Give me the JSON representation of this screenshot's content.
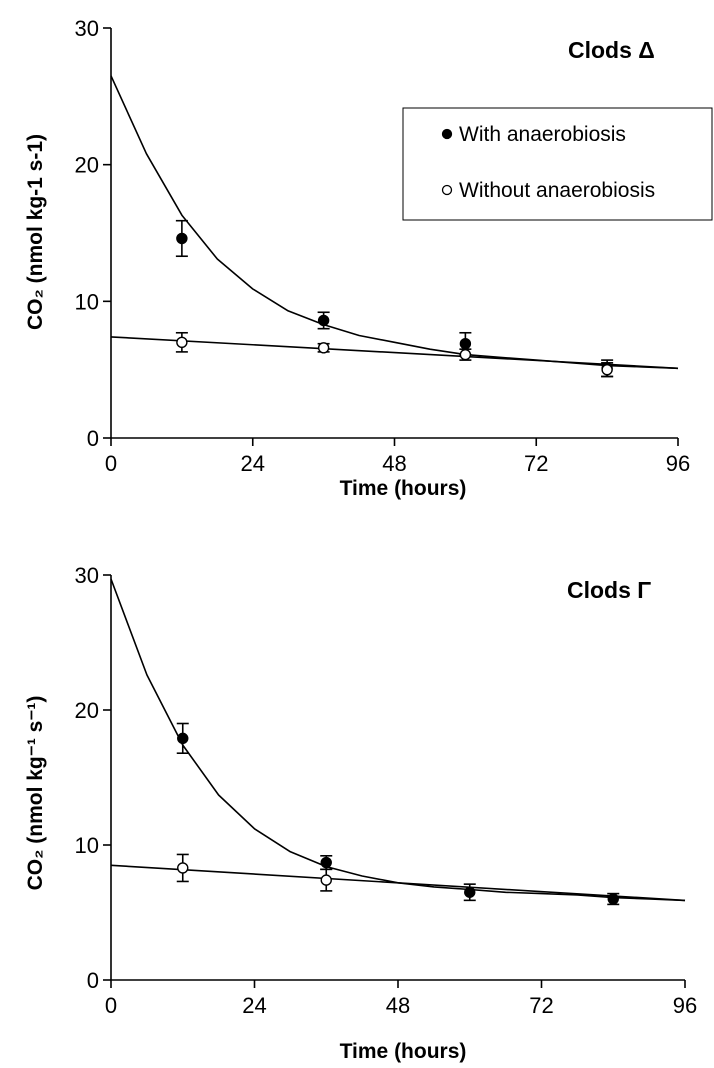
{
  "chart_data": [
    {
      "type": "scatter",
      "title": "Clods Δ",
      "xlabel": "Time (hours)",
      "ylabel": "CO₂ (nmol kg-1 s-1)",
      "xlim": [
        0,
        96
      ],
      "ylim": [
        0,
        30
      ],
      "xticks": [
        "0",
        "24",
        "48",
        "72",
        "96"
      ],
      "yticks": [
        "0",
        "10",
        "20",
        "30"
      ],
      "grid": false,
      "legend_position": "top-right",
      "series": [
        {
          "name": "With anaerobiosis",
          "marker": "filled-circle",
          "x": [
            12,
            36,
            60,
            84
          ],
          "y": [
            14.6,
            8.6,
            6.9,
            5.1
          ],
          "err": [
            1.3,
            0.6,
            0.8,
            0.6
          ],
          "fit": {
            "x": [
              0,
              6,
              12,
              18,
              24,
              30,
              36,
              42,
              48,
              54,
              60,
              66,
              72,
              78,
              84,
              90,
              96
            ],
            "y": [
              26.5,
              20.8,
              16.3,
              13.1,
              10.9,
              9.3,
              8.3,
              7.5,
              7.0,
              6.5,
              6.1,
              5.9,
              5.7,
              5.5,
              5.3,
              5.2,
              5.1
            ]
          }
        },
        {
          "name": "Without anaerobiosis",
          "marker": "open-circle",
          "x": [
            12,
            36,
            60,
            84
          ],
          "y": [
            7.0,
            6.6,
            6.1,
            5.0
          ],
          "err": [
            0.7,
            0.3,
            0.4,
            0.5
          ],
          "fit": {
            "x": [
              0,
              96
            ],
            "y": [
              7.4,
              5.1
            ]
          }
        }
      ]
    },
    {
      "type": "scatter",
      "title": "Clods Γ",
      "xlabel": "Time (hours)",
      "ylabel": "CO₂ (nmol kg⁻¹ s⁻¹)",
      "xlim": [
        0,
        96
      ],
      "ylim": [
        0,
        30
      ],
      "xticks": [
        "0",
        "24",
        "48",
        "72",
        "96"
      ],
      "yticks": [
        "0",
        "10",
        "20",
        "30"
      ],
      "grid": false,
      "series": [
        {
          "name": "With anaerobiosis",
          "marker": "filled-circle",
          "x": [
            12,
            36,
            60,
            84
          ],
          "y": [
            17.9,
            8.7,
            6.5,
            6.0
          ],
          "err": [
            1.1,
            0.5,
            0.6,
            0.4
          ],
          "fit": {
            "x": [
              0,
              6,
              12,
              18,
              24,
              30,
              36,
              42,
              48,
              54,
              60,
              66,
              72,
              78,
              84,
              90,
              96
            ],
            "y": [
              29.7,
              22.6,
              17.4,
              13.7,
              11.2,
              9.5,
              8.4,
              7.7,
              7.2,
              6.9,
              6.7,
              6.5,
              6.4,
              6.3,
              6.1,
              6.0,
              5.9
            ]
          }
        },
        {
          "name": "Without anaerobiosis",
          "marker": "open-circle",
          "x": [
            12,
            36
          ],
          "y": [
            8.3,
            7.4
          ],
          "err": [
            1.0,
            0.8
          ],
          "fit": {
            "x": [
              0,
              96
            ],
            "y": [
              8.5,
              5.9
            ]
          }
        }
      ]
    }
  ]
}
